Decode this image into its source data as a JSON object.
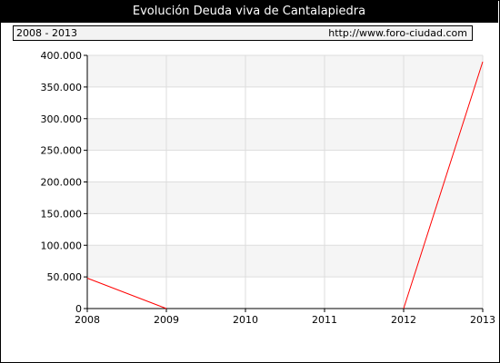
{
  "title": "Evolución Deuda viva de Cantalapiedra",
  "info_bar": {
    "period": "2008 - 2013",
    "url": "http://www.foro-ciudad.com"
  },
  "colors": {
    "line": "#ff0000",
    "band": "#f5f5f5",
    "grid": "#dddddd"
  },
  "chart_data": {
    "type": "line",
    "title": "Evolución Deuda viva de Cantalapiedra",
    "xlabel": "",
    "ylabel": "",
    "x": [
      2008,
      2009,
      2010,
      2011,
      2012,
      2013
    ],
    "x_tick_labels": [
      "2008",
      "2009",
      "2010",
      "2011",
      "2012",
      "2013"
    ],
    "ylim": [
      0,
      400000
    ],
    "y_ticks": [
      0,
      50000,
      100000,
      150000,
      200000,
      250000,
      300000,
      350000,
      400000
    ],
    "y_tick_labels": [
      "0",
      "50.000",
      "100.000",
      "150.000",
      "200.000",
      "250.000",
      "300.000",
      "350.000",
      "400.000"
    ],
    "grid": true,
    "legend": "none",
    "segments": [
      [
        {
          "x": 2008,
          "y": 48000
        },
        {
          "x": 2009,
          "y": 0
        }
      ],
      [
        {
          "x": 2012,
          "y": 0
        },
        {
          "x": 2013,
          "y": 390000
        }
      ]
    ]
  }
}
